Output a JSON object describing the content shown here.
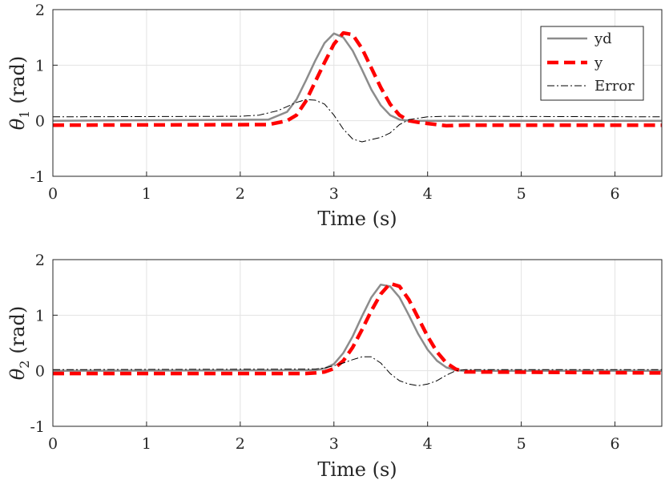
{
  "chart_data": [
    {
      "type": "line",
      "ylabel_symbol": "θ",
      "ylabel_subscript": "1",
      "ylabel_unit": "(rad)",
      "xlabel": "Time (s)",
      "xlim": [
        0,
        6.5
      ],
      "ylim": [
        -1,
        2
      ],
      "xticks": [
        0,
        1,
        2,
        3,
        4,
        5,
        6
      ],
      "xtick_labels": [
        "0",
        "1",
        "2",
        "3",
        "4",
        "5",
        "6"
      ],
      "yticks": [
        -1,
        0,
        1,
        2
      ],
      "ytick_labels": [
        "-1",
        "0",
        "1",
        "2"
      ],
      "grid": true,
      "legend": {
        "placement": "top-right",
        "entries": [
          "yd",
          "y",
          "Error"
        ]
      },
      "series": [
        {
          "name": "yd",
          "color": "#8c8c8c",
          "style": "solid",
          "x": [
            0,
            2.3,
            2.5,
            2.6,
            2.7,
            2.8,
            2.9,
            3.0,
            3.1,
            3.2,
            3.3,
            3.4,
            3.5,
            3.6,
            3.7,
            3.8,
            3.9,
            4.0,
            6.5
          ],
          "y": [
            0.0,
            0.02,
            0.16,
            0.38,
            0.72,
            1.08,
            1.4,
            1.57,
            1.5,
            1.26,
            0.92,
            0.56,
            0.28,
            0.1,
            0.02,
            0.0,
            0.0,
            0.0,
            0.0
          ]
        },
        {
          "name": "y",
          "color": "#ff0000",
          "style": "dashed",
          "x": [
            0,
            2.3,
            2.5,
            2.6,
            2.7,
            2.8,
            2.9,
            3.0,
            3.1,
            3.2,
            3.3,
            3.4,
            3.5,
            3.6,
            3.7,
            3.8,
            3.9,
            4.0,
            4.2,
            4.4,
            6.5
          ],
          "y": [
            -0.08,
            -0.07,
            0.0,
            0.1,
            0.35,
            0.7,
            1.05,
            1.38,
            1.58,
            1.55,
            1.3,
            0.95,
            0.6,
            0.3,
            0.1,
            0.0,
            -0.03,
            -0.05,
            -0.09,
            -0.08,
            -0.08
          ]
        },
        {
          "name": "Error",
          "color": "#000000",
          "style": "dashdot",
          "x": [
            0,
            2.0,
            2.2,
            2.4,
            2.6,
            2.7,
            2.8,
            2.9,
            3.0,
            3.1,
            3.2,
            3.3,
            3.4,
            3.5,
            3.6,
            3.7,
            3.8,
            4.0,
            4.2,
            6.5
          ],
          "y": [
            0.07,
            0.08,
            0.1,
            0.18,
            0.33,
            0.38,
            0.37,
            0.3,
            0.1,
            -0.15,
            -0.33,
            -0.38,
            -0.34,
            -0.3,
            -0.22,
            -0.07,
            0.02,
            0.07,
            0.08,
            0.07
          ]
        }
      ]
    },
    {
      "type": "line",
      "ylabel_symbol": "θ",
      "ylabel_subscript": "2",
      "ylabel_unit": "(rad)",
      "xlabel": "Time (s)",
      "xlim": [
        0,
        6.5
      ],
      "ylim": [
        -1,
        2
      ],
      "xticks": [
        0,
        1,
        2,
        3,
        4,
        5,
        6
      ],
      "xtick_labels": [
        "0",
        "1",
        "2",
        "3",
        "4",
        "5",
        "6"
      ],
      "yticks": [
        -1,
        0,
        1,
        2
      ],
      "ytick_labels": [
        "-1",
        "0",
        "1",
        "2"
      ],
      "grid": true,
      "series": [
        {
          "name": "yd",
          "color": "#8c8c8c",
          "style": "solid",
          "x": [
            0,
            2.8,
            2.9,
            3.0,
            3.1,
            3.2,
            3.3,
            3.4,
            3.5,
            3.6,
            3.7,
            3.8,
            3.9,
            4.0,
            4.1,
            4.2,
            4.3,
            4.4,
            6.5
          ],
          "y": [
            0.0,
            0.01,
            0.04,
            0.12,
            0.32,
            0.62,
            0.98,
            1.32,
            1.55,
            1.52,
            1.32,
            1.0,
            0.66,
            0.38,
            0.18,
            0.06,
            0.01,
            0.0,
            0.0
          ]
        },
        {
          "name": "y",
          "color": "#ff0000",
          "style": "dashed",
          "x": [
            0,
            2.7,
            2.8,
            2.9,
            3.0,
            3.1,
            3.2,
            3.3,
            3.4,
            3.5,
            3.6,
            3.7,
            3.8,
            3.9,
            4.0,
            4.1,
            4.2,
            4.3,
            4.4,
            6.5
          ],
          "y": [
            -0.05,
            -0.05,
            -0.04,
            -0.02,
            0.04,
            0.18,
            0.42,
            0.74,
            1.08,
            1.38,
            1.57,
            1.52,
            1.28,
            0.95,
            0.62,
            0.34,
            0.14,
            0.03,
            -0.02,
            -0.04
          ]
        },
        {
          "name": "Error",
          "color": "#000000",
          "style": "dashdot",
          "x": [
            0,
            2.8,
            2.9,
            3.0,
            3.1,
            3.2,
            3.3,
            3.4,
            3.5,
            3.6,
            3.7,
            3.8,
            3.9,
            4.0,
            4.1,
            4.2,
            4.3,
            4.4,
            6.5
          ],
          "y": [
            0.02,
            0.03,
            0.05,
            0.09,
            0.14,
            0.2,
            0.25,
            0.25,
            0.14,
            -0.05,
            -0.18,
            -0.24,
            -0.27,
            -0.24,
            -0.18,
            -0.08,
            0.0,
            0.02,
            0.02
          ]
        }
      ]
    }
  ]
}
